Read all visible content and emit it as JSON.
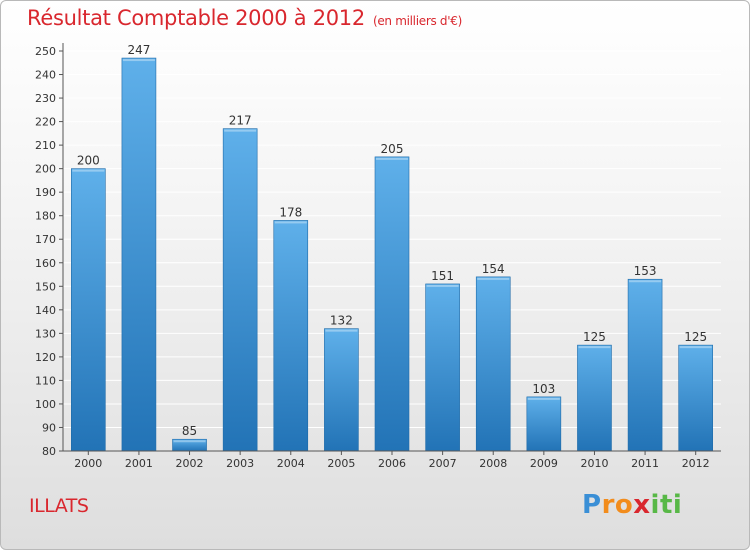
{
  "header": {
    "title": "Résultat Comptable 2000 à 2012",
    "subtitle": "(en milliers d'€)"
  },
  "footer": {
    "commune": "ILLATS",
    "brand_letters": [
      "P",
      "r",
      "o",
      "x",
      "i",
      "t",
      "i"
    ],
    "brand_colors": [
      "#3a8fd6",
      "#f28c1c",
      "#f28c1c",
      "#d9272e",
      "#58b847",
      "#58b847",
      "#58b847"
    ]
  },
  "colors": {
    "title": "#d9272e",
    "bar_light": "#5fb0ea",
    "bar_dark": "#2273b6",
    "grid": "#ffffff",
    "axis": "#555555"
  },
  "chart_data": {
    "type": "bar",
    "title": "Résultat Comptable 2000 à 2012",
    "subtitle": "(en milliers d'€)",
    "categories": [
      "2000",
      "2001",
      "2002",
      "2003",
      "2004",
      "2005",
      "2006",
      "2007",
      "2008",
      "2009",
      "2010",
      "2011",
      "2012"
    ],
    "values": [
      200,
      247,
      85,
      217,
      178,
      132,
      205,
      151,
      154,
      103,
      125,
      153,
      125
    ],
    "ylim": [
      80,
      250
    ],
    "ytick_step": 10,
    "xlabel": "",
    "ylabel": "",
    "grid": true,
    "data_labels": true
  }
}
